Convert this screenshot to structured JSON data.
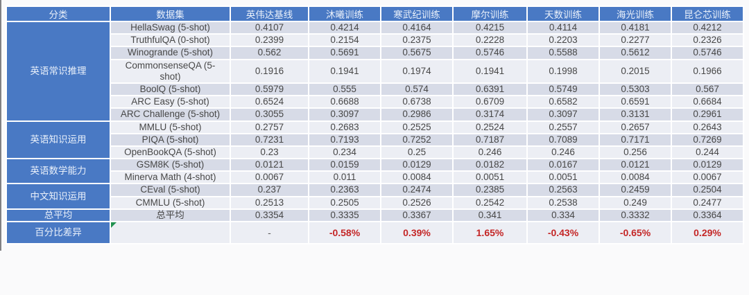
{
  "chart_data": {
    "type": "table",
    "title": "",
    "columns": [
      "分类",
      "数据集",
      "英伟达基线",
      "沐曦训练",
      "寒武纪训练",
      "摩尔训练",
      "天数训练",
      "海光训练",
      "昆仑芯训练"
    ],
    "groups": [
      {
        "category": "英语常识推理",
        "rows": [
          {
            "dataset": "HellaSwag (5-shot)",
            "values": [
              "0.4107",
              "0.4214",
              "0.4164",
              "0.4215",
              "0.4114",
              "0.4181",
              "0.4212"
            ]
          },
          {
            "dataset": "TruthfulQA (0-shot)",
            "values": [
              "0.2399",
              "0.2154",
              "0.2375",
              "0.2228",
              "0.2203",
              "0.2277",
              "0.2326"
            ]
          },
          {
            "dataset": "Winogrande (5-shot)",
            "values": [
              "0.562",
              "0.5691",
              "0.5675",
              "0.5746",
              "0.5588",
              "0.5612",
              "0.5746"
            ]
          },
          {
            "dataset": "CommonsenseQA (5-shot)",
            "values": [
              "0.1916",
              "0.1941",
              "0.1974",
              "0.1941",
              "0.1998",
              "0.2015",
              "0.1966"
            ]
          },
          {
            "dataset": "BoolQ (5-shot)",
            "values": [
              "0.5979",
              "0.555",
              "0.574",
              "0.6391",
              "0.5749",
              "0.5303",
              "0.567"
            ]
          },
          {
            "dataset": "ARC Easy (5-shot)",
            "values": [
              "0.6524",
              "0.6688",
              "0.6738",
              "0.6709",
              "0.6582",
              "0.6591",
              "0.6684"
            ]
          },
          {
            "dataset": "ARC Challenge (5-shot)",
            "values": [
              "0.3055",
              "0.3097",
              "0.2986",
              "0.3174",
              "0.3097",
              "0.3131",
              "0.2961"
            ]
          }
        ]
      },
      {
        "category": "英语知识运用",
        "rows": [
          {
            "dataset": "MMLU (5-shot)",
            "values": [
              "0.2757",
              "0.2683",
              "0.2525",
              "0.2524",
              "0.2557",
              "0.2657",
              "0.2643"
            ]
          },
          {
            "dataset": "PIQA (5-shot)",
            "values": [
              "0.7231",
              "0.7193",
              "0.7252",
              "0.7187",
              "0.7089",
              "0.7171",
              "0.7269"
            ]
          },
          {
            "dataset": "OpenBookQA (5-shot)",
            "values": [
              "0.23",
              "0.234",
              "0.25",
              "0.246",
              "0.246",
              "0.256",
              "0.244"
            ]
          }
        ]
      },
      {
        "category": "英语数学能力",
        "rows": [
          {
            "dataset": "GSM8K (5-shot)",
            "values": [
              "0.0121",
              "0.0159",
              "0.0129",
              "0.0182",
              "0.0167",
              "0.0121",
              "0.0129"
            ]
          },
          {
            "dataset": "Minerva Math (4-shot)",
            "values": [
              "0.0067",
              "0.011",
              "0.0084",
              "0.0051",
              "0.0051",
              "0.0084",
              "0.0067"
            ]
          }
        ]
      },
      {
        "category": "中文知识运用",
        "rows": [
          {
            "dataset": "CEval (5-shot)",
            "values": [
              "0.237",
              "0.2363",
              "0.2474",
              "0.2385",
              "0.2563",
              "0.2459",
              "0.2504"
            ]
          },
          {
            "dataset": "CMMLU (5-shot)",
            "values": [
              "0.2513",
              "0.2505",
              "0.2526",
              "0.2542",
              "0.2538",
              "0.249",
              "0.2477"
            ]
          }
        ]
      }
    ],
    "total_row": {
      "category": "总平均",
      "dataset": "总平均",
      "values": [
        "0.3354",
        "0.3335",
        "0.3367",
        "0.341",
        "0.334",
        "0.3332",
        "0.3364"
      ]
    },
    "diff_row": {
      "category": "百分比差异",
      "dataset": "",
      "values": [
        "-",
        "-0.58%",
        "0.39%",
        "1.65%",
        "-0.43%",
        "-0.65%",
        "0.29%"
      ]
    }
  },
  "colors": {
    "header_bg": "#4979C4",
    "header_text": "#E9F0FA",
    "band_dark": "#D7DBE7",
    "band_light": "#ECEEF4",
    "value_text": "#474747",
    "diff_red": "#C42626",
    "error_marker_green": "#219150",
    "page_bg": "#FAFAFB",
    "grid_white": "#FFFFFF"
  },
  "icons": {
    "error_marker": "cell-error-indicator-triangle"
  }
}
